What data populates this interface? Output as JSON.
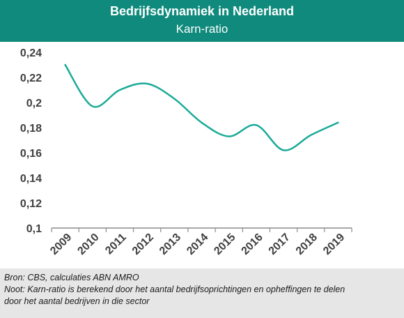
{
  "header": {
    "title": "Bedrijfsdynamiek in Nederland",
    "subtitle": "Karn-ratio"
  },
  "footer": {
    "source": "Bron: CBS, calculaties ABN AMRO",
    "note_line1": "Noot: Karn-ratio is berekend door het aantal bedrijfsoprichtingen en opheffingen te delen",
    "note_line2": "door het aantal bedrijven in die sector"
  },
  "colors": {
    "header_bg": "#0f8a7c",
    "line": "#1aaa98",
    "footer_bg": "#e6e6e6"
  },
  "chart_data": {
    "type": "line",
    "title": "Karn-ratio",
    "categories": [
      "2009",
      "2010",
      "2011",
      "2012",
      "2013",
      "2014",
      "2015",
      "2016",
      "2017",
      "2018",
      "2019"
    ],
    "series": [
      {
        "values": [
          0.23,
          0.197,
          0.21,
          0.215,
          0.203,
          0.184,
          0.173,
          0.182,
          0.162,
          0.174,
          0.184
        ]
      }
    ],
    "yticks": [
      "0,1",
      "0,12",
      "0,14",
      "0,16",
      "0,18",
      "0,2",
      "0,22",
      "0,24"
    ],
    "ytick_values": [
      0.1,
      0.12,
      0.14,
      0.16,
      0.18,
      0.2,
      0.22,
      0.24
    ],
    "ylim": [
      0.1,
      0.24
    ],
    "grid": false,
    "legend": "none"
  }
}
